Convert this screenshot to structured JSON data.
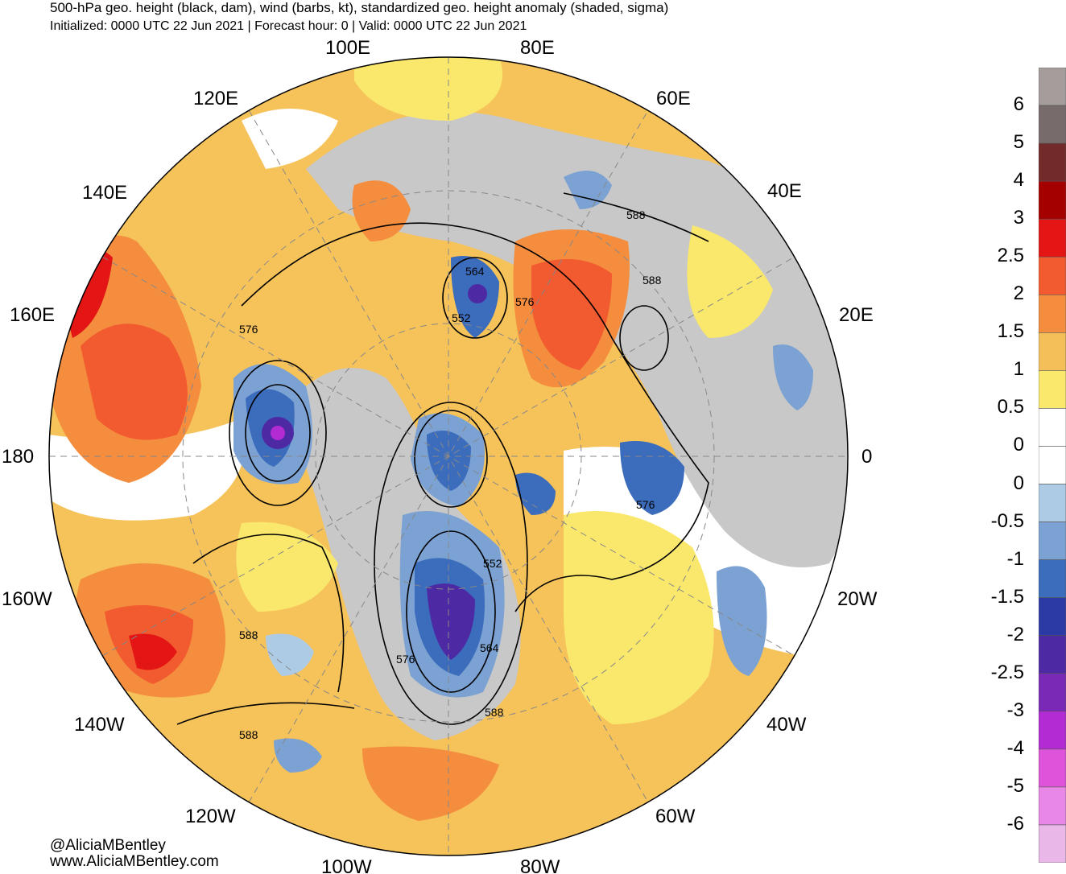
{
  "header": {
    "title": "500-hPa geo. height (black, dam), wind (barbs, kt), standardized geo. height anomaly (shaded, sigma)",
    "subtitle": "Initialized: 0000 UTC 22 Jun 2021 | Forecast hour: 0 | Valid: 0000 UTC 22 Jun 2021"
  },
  "map": {
    "projection": "north-polar-stereographic",
    "longitude_labels": [
      "100E",
      "80E",
      "120E",
      "60E",
      "140E",
      "40E",
      "160E",
      "20E",
      "180",
      "0",
      "160W",
      "20W",
      "140W",
      "40W",
      "120W",
      "60W",
      "100W",
      "80W"
    ],
    "contour_labels": [
      "564",
      "588",
      "588",
      "576",
      "552",
      "576",
      "576",
      "552",
      "564",
      "576",
      "588",
      "588",
      "588"
    ],
    "colors": {
      "land_outside_domain": "#cccccc",
      "positive_anomaly": "#f7c35a",
      "negative_anomaly": "#6e9bd1"
    }
  },
  "colorbar": {
    "labels": [
      "6",
      "5",
      "4",
      "3",
      "2.5",
      "2",
      "1.5",
      "1",
      "0.5",
      "0",
      "0",
      "-0.5",
      "-1",
      "-1.5",
      "-2",
      "-2.5",
      "-3",
      "-4",
      "-5",
      "-6"
    ],
    "colors": [
      "#a59c9c",
      "#776b6b",
      "#722a2a",
      "#a50000",
      "#e41515",
      "#f25a2f",
      "#f48d3e",
      "#f4bf59",
      "#fae86d",
      "#ffffff",
      "#ffffff",
      "#aecbe6",
      "#7ba2d3",
      "#3c6cbc",
      "#2c3aa5",
      "#4d2aa4",
      "#7a29b6",
      "#b32bd3",
      "#dd53da",
      "#e887e5",
      "#e9b8e8"
    ]
  },
  "footer": {
    "handle": "@AliciaMBentley",
    "website": "www.AliciaMBentley.com"
  }
}
